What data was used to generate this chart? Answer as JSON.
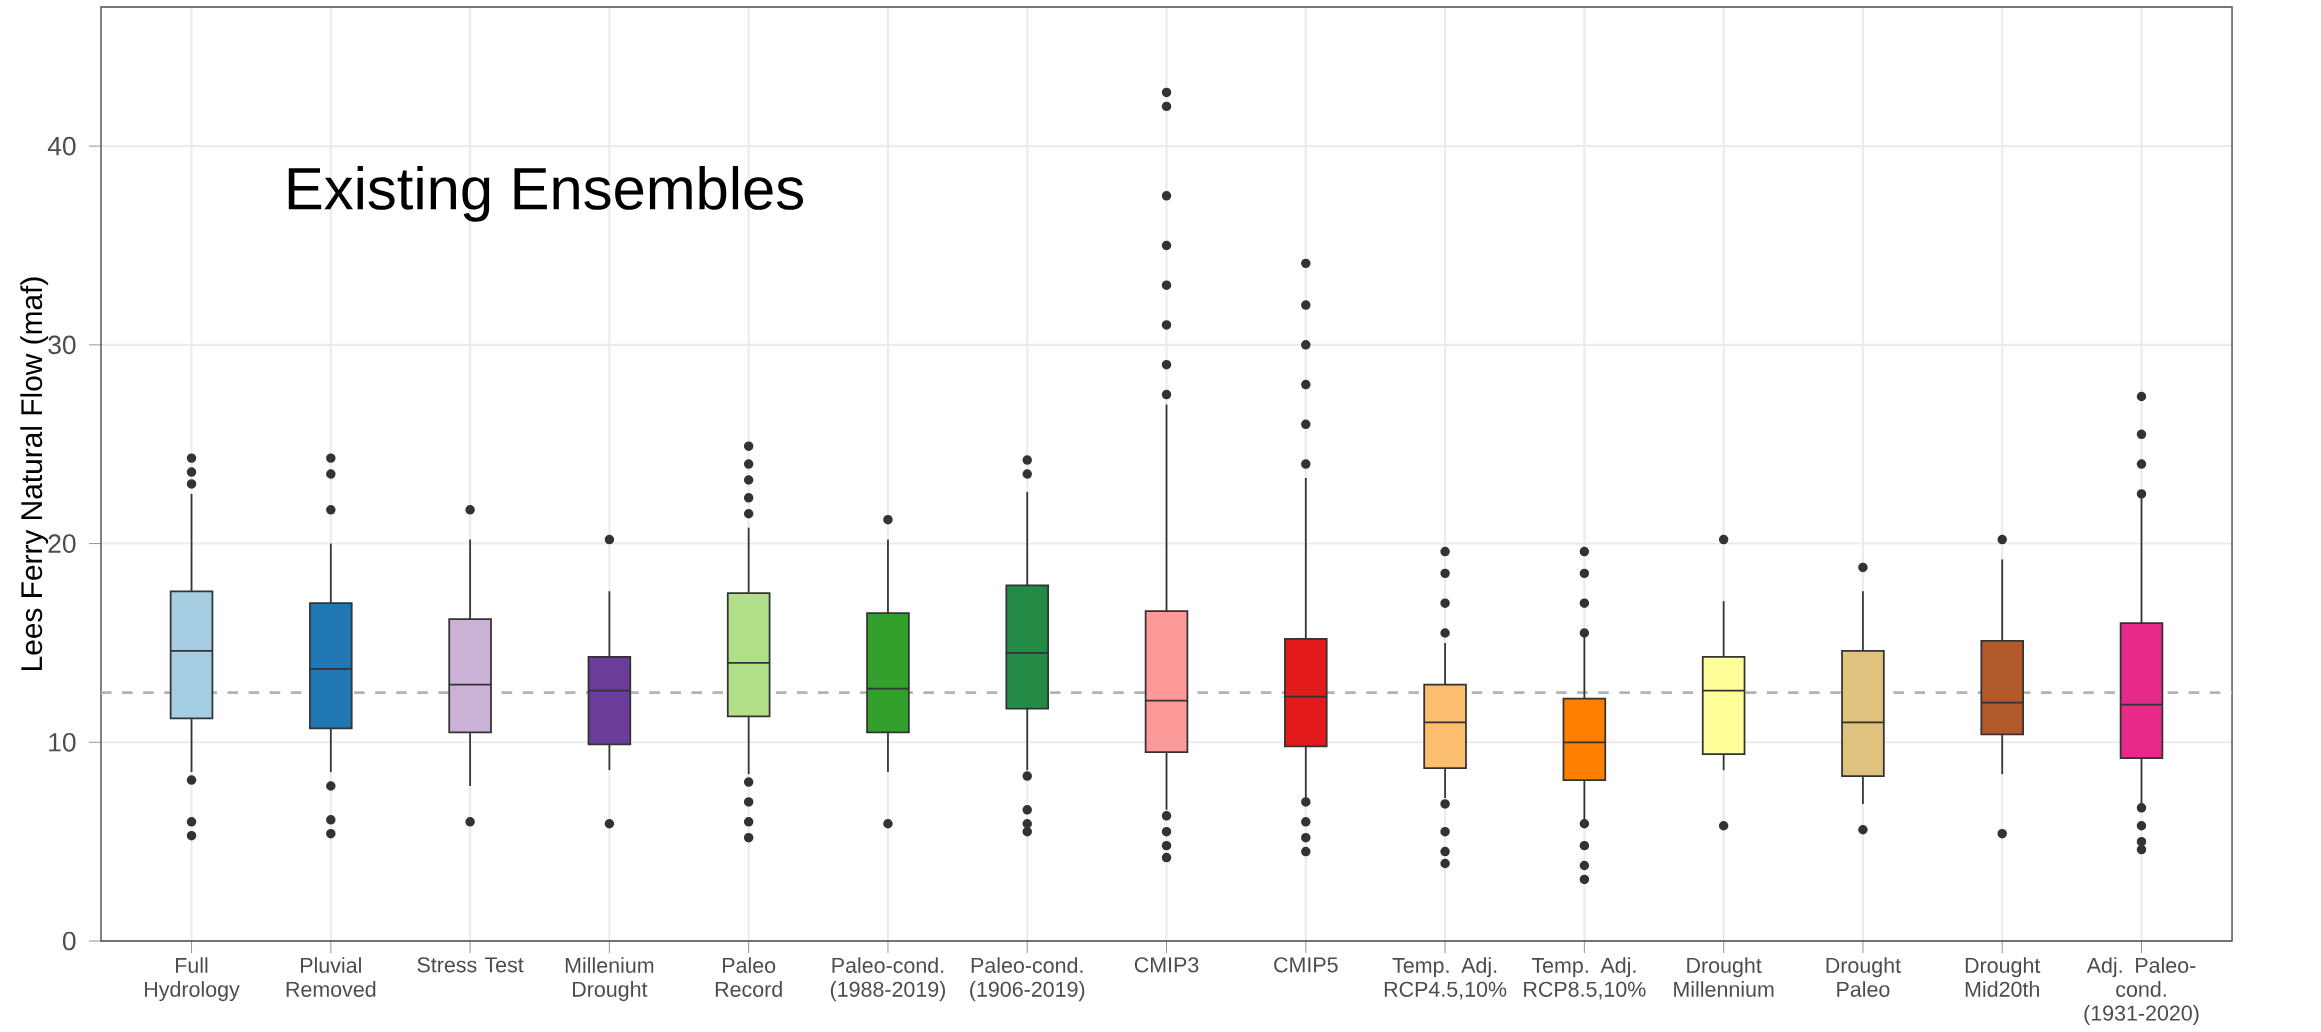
{
  "chart_data": {
    "type": "box",
    "ylabel": "Lees Ferry Natural Flow (maf)",
    "annotations": [
      "Existing Ensembles"
    ],
    "categories": [
      "Full Hydrology",
      "Pluvial Removed",
      "Stress Test",
      "Millenium Drought",
      "Paleo Record",
      "Paleo-cond. (1988-2019)",
      "Paleo-cond. (1906-2019)",
      "CMIP3",
      "CMIP5",
      "Temp. Adj. RCP4.5,10%",
      "Temp. Adj. RCP8.5,10%",
      "Drought Millennium",
      "Drought Paleo",
      "Drought Mid20th",
      "Adj. Paleo-cond. (1931-2020)"
    ],
    "colors": [
      "#a6cee3",
      "#1f78b4",
      "#cab2d6",
      "#6a3d9a",
      "#b2df8a",
      "#33a02c",
      "#238b45",
      "#fb9a99",
      "#e31a1c",
      "#fdbf6f",
      "#ff7f00",
      "#ffff99",
      "#dfc27d",
      "#b15928",
      "#e7298a"
    ],
    "boxes": [
      {
        "low": 8.5,
        "q1": 11.2,
        "median": 14.6,
        "q3": 17.6,
        "high": 22.5,
        "outliers": [
          23,
          23.6,
          24.3,
          8.1,
          6.0,
          5.3
        ]
      },
      {
        "low": 8.5,
        "q1": 10.7,
        "median": 13.7,
        "q3": 17.0,
        "high": 20.0,
        "outliers": [
          21.7,
          23.5,
          24.3,
          7.8,
          6.1,
          5.4
        ]
      },
      {
        "low": 7.8,
        "q1": 10.5,
        "median": 12.9,
        "q3": 16.2,
        "high": 20.2,
        "outliers": [
          21.7,
          6.0
        ]
      },
      {
        "low": 8.6,
        "q1": 9.9,
        "median": 12.6,
        "q3": 14.3,
        "high": 17.6,
        "outliers": [
          20.2,
          5.9
        ]
      },
      {
        "low": 8.4,
        "q1": 11.3,
        "median": 14.0,
        "q3": 17.5,
        "high": 20.8,
        "outliers": [
          21.5,
          22.3,
          23.2,
          24.0,
          24.9,
          8.0,
          7.0,
          6.0,
          5.2
        ]
      },
      {
        "low": 8.5,
        "q1": 10.5,
        "median": 12.7,
        "q3": 16.5,
        "high": 20.2,
        "outliers": [
          21.2,
          5.9
        ]
      },
      {
        "low": 8.6,
        "q1": 11.7,
        "median": 14.5,
        "q3": 17.9,
        "high": 22.6,
        "outliers": [
          23.5,
          24.2,
          8.3,
          6.6,
          5.9,
          5.5
        ]
      },
      {
        "low": 6.6,
        "q1": 9.5,
        "median": 12.1,
        "q3": 16.6,
        "high": 27.0,
        "outliers": [
          27.5,
          29,
          31,
          33,
          35,
          37.5,
          42,
          42.7,
          6.3,
          5.5,
          4.8,
          4.2
        ]
      },
      {
        "low": 7.2,
        "q1": 9.8,
        "median": 12.3,
        "q3": 15.2,
        "high": 23.3,
        "outliers": [
          24,
          26,
          28,
          30,
          32,
          34.1,
          7.0,
          6.0,
          5.2,
          4.5
        ]
      },
      {
        "low": 7.2,
        "q1": 8.7,
        "median": 11.0,
        "q3": 12.9,
        "high": 15.0,
        "outliers": [
          15.5,
          17,
          18.5,
          19.6,
          6.9,
          5.5,
          4.5,
          3.9
        ]
      },
      {
        "low": 6.0,
        "q1": 8.1,
        "median": 10.0,
        "q3": 12.2,
        "high": 15.3,
        "outliers": [
          15.5,
          17,
          18.5,
          19.6,
          5.9,
          4.8,
          3.8,
          3.1
        ]
      },
      {
        "low": 8.6,
        "q1": 9.4,
        "median": 12.6,
        "q3": 14.3,
        "high": 17.1,
        "outliers": [
          20.2,
          5.8
        ]
      },
      {
        "low": 6.9,
        "q1": 8.3,
        "median": 11.0,
        "q3": 14.6,
        "high": 17.6,
        "outliers": [
          18.8,
          5.6
        ]
      },
      {
        "low": 8.4,
        "q1": 10.4,
        "median": 12.0,
        "q3": 15.1,
        "high": 19.2,
        "outliers": [
          20.2,
          5.4
        ]
      },
      {
        "low": 6.8,
        "q1": 9.2,
        "median": 11.9,
        "q3": 16.0,
        "high": 22.3,
        "outliers": [
          22.5,
          24,
          25.5,
          27.4,
          6.7,
          5.8,
          5.0,
          4.6
        ]
      }
    ],
    "ylim": [
      0,
      47
    ],
    "yticks": [
      0,
      10,
      20,
      30,
      40
    ],
    "grid": true,
    "ref_lines": [
      {
        "axis": "y",
        "value": 12.5,
        "color": "#b3b3b3",
        "line_style": "dashed"
      }
    ]
  }
}
